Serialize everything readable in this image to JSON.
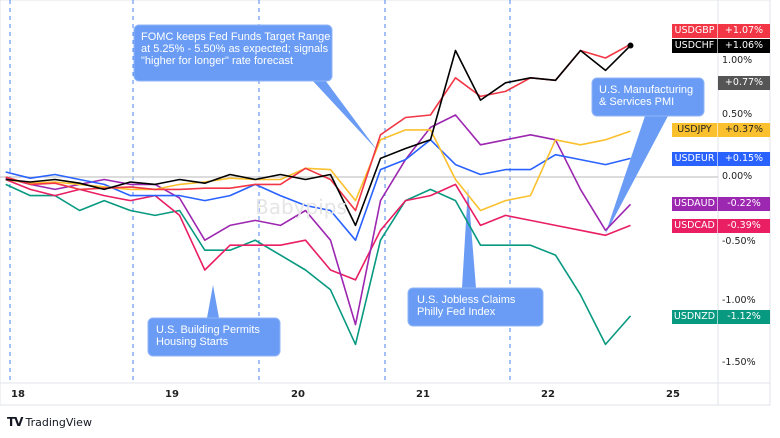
{
  "chart_data": {
    "type": "line",
    "title": "",
    "xlabel": "",
    "ylabel": "",
    "x_ticks": [
      "18",
      "19",
      "20",
      "21",
      "22",
      "25"
    ],
    "y_ticks": [
      "1.00%",
      "0.50%",
      "0.00%",
      "-0.50%",
      "-1.00%",
      "-1.50%"
    ],
    "ylim": [
      -1.65,
      1.4
    ],
    "grid": "vertical dashed session lines",
    "x": [
      17.92,
      18.08,
      18.24,
      18.4,
      18.56,
      18.73,
      18.89,
      19.06,
      19.26,
      19.46,
      19.66,
      19.86,
      20.06,
      20.26,
      20.46,
      20.66,
      20.86,
      21.06,
      21.26,
      21.46,
      21.66,
      21.86,
      22.06,
      22.26,
      22.46,
      22.66
    ],
    "series": [
      {
        "name": "USDGBP",
        "label": "+1.07%",
        "color": "#f23645",
        "values": [
          0,
          -0.06,
          -0.05,
          -0.1,
          -0.09,
          -0.08,
          -0.1,
          -0.1,
          -0.09,
          -0.09,
          -0.06,
          -0.06,
          0.07,
          -0.02,
          -0.27,
          0.34,
          0.48,
          0.5,
          0.8,
          0.65,
          0.69,
          0.8,
          0.78,
          1.02,
          0.96,
          1.07
        ]
      },
      {
        "name": "USDCHF",
        "label": "+1.06%",
        "color": "#000000",
        "values": [
          -0.02,
          -0.04,
          -0.02,
          -0.05,
          -0.1,
          -0.04,
          -0.06,
          -0.02,
          -0.05,
          0.02,
          -0.02,
          0.02,
          -0.02,
          0.02,
          -0.39,
          0.15,
          0.23,
          0.3,
          1.02,
          0.62,
          0.76,
          0.8,
          0.78,
          1.02,
          0.86,
          1.06
        ]
      },
      {
        "name": "USDJPY",
        "label": "+0.37%",
        "color": "#fbc02d",
        "values": [
          -0.02,
          -0.05,
          -0.04,
          -0.06,
          -0.08,
          -0.1,
          -0.1,
          -0.06,
          -0.04,
          -0.01,
          -0.02,
          -0.02,
          0.07,
          0.06,
          -0.19,
          0.3,
          0.38,
          0.38,
          -0.02,
          -0.27,
          -0.19,
          -0.15,
          0.3,
          0.26,
          0.3,
          0.37
        ]
      },
      {
        "name": "USDEUR",
        "label": "+0.15%",
        "color": "#2962ff",
        "values": [
          0.04,
          -0.01,
          0.02,
          -0.02,
          -0.06,
          -0.15,
          -0.15,
          -0.15,
          -0.19,
          -0.15,
          -0.06,
          -0.15,
          -0.23,
          -0.27,
          -0.51,
          0.06,
          0.14,
          0.3,
          0.1,
          0.02,
          0.06,
          0.06,
          0.18,
          0.14,
          0.1,
          0.15
        ]
      },
      {
        "name": "USDAUD",
        "label": "-0.22%",
        "color": "#9c27b0",
        "values": [
          -0.01,
          -0.06,
          -0.1,
          -0.06,
          -0.02,
          -0.06,
          -0.06,
          -0.17,
          -0.51,
          -0.39,
          -0.35,
          -0.39,
          -0.27,
          -0.51,
          -1.19,
          -0.19,
          0.14,
          0.4,
          0.5,
          0.26,
          0.3,
          0.34,
          0.3,
          -0.1,
          -0.43,
          -0.22
        ]
      },
      {
        "name": "USDCAD",
        "label": "-0.39%",
        "color": "#e91e63",
        "values": [
          -0.02,
          -0.1,
          -0.15,
          -0.1,
          -0.15,
          -0.19,
          -0.15,
          -0.31,
          -0.75,
          -0.55,
          -0.55,
          -0.55,
          -0.51,
          -0.75,
          -0.83,
          -0.43,
          -0.19,
          -0.15,
          -0.06,
          -0.39,
          -0.31,
          -0.35,
          -0.39,
          -0.43,
          -0.47,
          -0.39
        ]
      },
      {
        "name": "USDNZD",
        "label": "-1.12%",
        "color": "#089981",
        "values": [
          -0.06,
          -0.15,
          -0.15,
          -0.27,
          -0.19,
          -0.27,
          -0.31,
          -0.27,
          -0.59,
          -0.59,
          -0.51,
          -0.63,
          -0.75,
          -0.91,
          -1.35,
          -0.51,
          -0.19,
          -0.1,
          -0.19,
          -0.55,
          -0.55,
          -0.55,
          -0.63,
          -0.95,
          -1.35,
          -1.12
        ]
      }
    ],
    "extra_label": {
      "label": "+0.77%",
      "color": "#555555"
    },
    "annotations": [
      {
        "text": "FOMC keeps Fed Funds Target Range\nat 5.25% - 5.50% as expected; signals\n\"higher for longer\" rate forecast"
      },
      {
        "text": "U.S. Building Permits\nHousing Starts"
      },
      {
        "text": "U.S. Jobless Claims\nPhilly Fed Index"
      },
      {
        "text": "U.S. Manufacturing\n& Services PMI"
      }
    ]
  },
  "watermark": "Babypips",
  "branding": {
    "logo_mark": "TV",
    "name": "TradingView"
  },
  "callout_color": "#6a9cf5"
}
